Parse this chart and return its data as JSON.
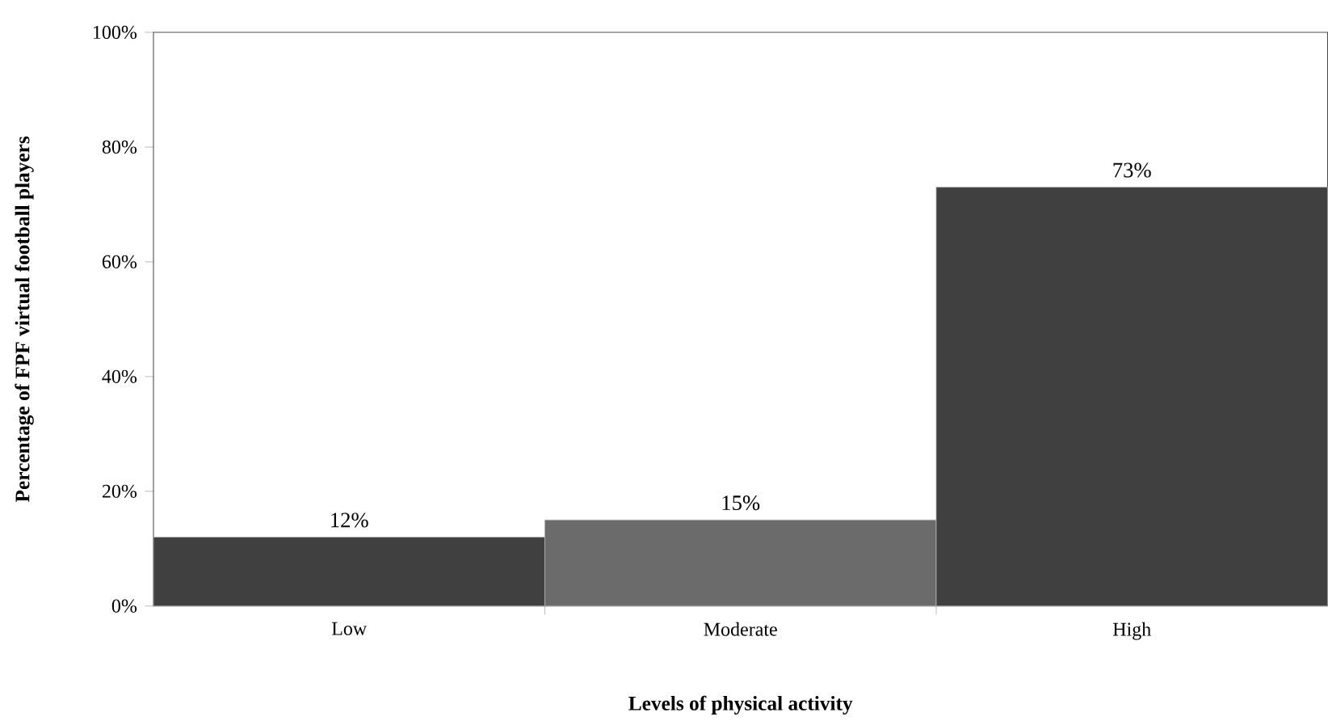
{
  "chart_data": {
    "type": "bar",
    "xlabel": "Levels of physical activity",
    "ylabel": "Percentage of FPF virtual football players",
    "categories": [
      "Low",
      "Moderate",
      "High"
    ],
    "values": [
      12,
      15,
      73
    ],
    "colors": [
      "#404040",
      "#6b6b6b",
      "#404040"
    ],
    "value_labels": [
      "12%",
      "15%",
      "73%"
    ],
    "ylim": [
      0,
      100
    ],
    "yticks": [
      {
        "value": 0,
        "label": "0%"
      },
      {
        "value": 20,
        "label": "20%"
      },
      {
        "value": 40,
        "label": "40%"
      },
      {
        "value": 60,
        "label": "60%"
      },
      {
        "value": 80,
        "label": "80%"
      },
      {
        "value": 100,
        "label": "100%"
      }
    ],
    "grid": false
  }
}
